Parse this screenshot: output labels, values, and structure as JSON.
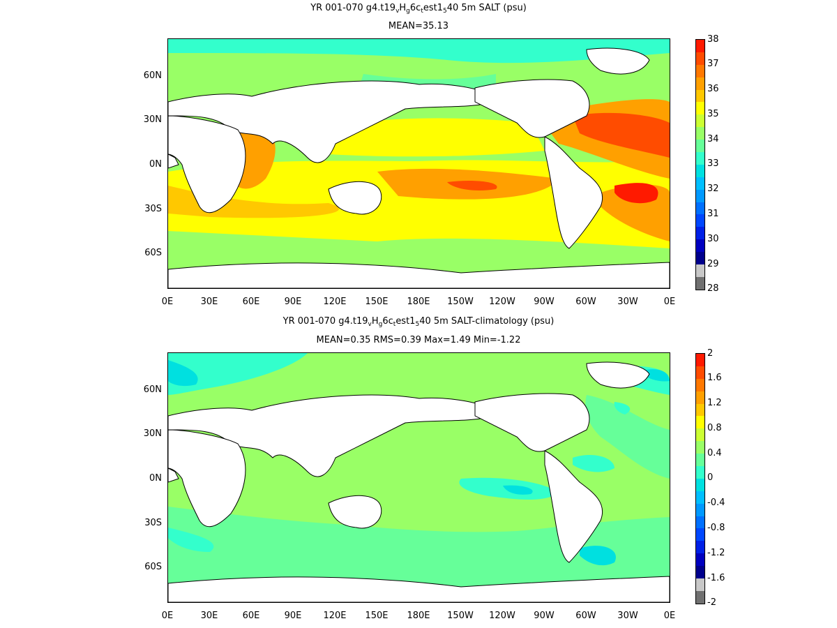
{
  "panels": [
    {
      "title_parts": [
        "YR 001-070 g4.t19",
        "v",
        "H",
        "g",
        "6c",
        "t",
        "est1",
        "5",
        "40 5m SALT (psu)"
      ],
      "subtitle": "MEAN=35.13",
      "colorbar_labels": [
        "38",
        "37",
        "36",
        "35",
        "34",
        "33",
        "32",
        "31",
        "30",
        "29",
        "28"
      ],
      "colorbar_colors": [
        "#ff1a00",
        "#ff4c00",
        "#ff7800",
        "#ffa000",
        "#ffc800",
        "#ffff00",
        "#ccff33",
        "#99ff66",
        "#66ff99",
        "#33ffcc",
        "#00e0e0",
        "#00bfff",
        "#0099ff",
        "#0070ff",
        "#0047ff",
        "#0020e6",
        "#0000c0",
        "#00008c",
        "#c8c8c8",
        "#707070"
      ]
    },
    {
      "title_parts": [
        "YR 001-070 g4.t19",
        "v",
        "H",
        "g",
        "6c",
        "t",
        "est1",
        "5",
        "40 5m SALT-climatology (psu)"
      ],
      "subtitle": "MEAN=0.35   RMS=0.39   Max=1.49   Min=-1.22",
      "colorbar_labels": [
        "2",
        "1.6",
        "1.2",
        "0.8",
        "0.4",
        "0",
        "-0.4",
        "-0.8",
        "-1.2",
        "-1.6",
        "-2"
      ],
      "colorbar_colors": [
        "#ff1a00",
        "#ff4c00",
        "#ff7800",
        "#ffa000",
        "#ffc800",
        "#ffff00",
        "#ccff33",
        "#99ff66",
        "#66ff99",
        "#33ffcc",
        "#00e0e0",
        "#00bfff",
        "#0099ff",
        "#0070ff",
        "#0047ff",
        "#0020e6",
        "#0000c0",
        "#00008c",
        "#c8c8c8",
        "#707070"
      ]
    }
  ],
  "x_axis_labels": [
    "0E",
    "30E",
    "60E",
    "90E",
    "120E",
    "150E",
    "180E",
    "150W",
    "120W",
    "90W",
    "60W",
    "30W",
    "0E"
  ],
  "y_axis_labels": [
    "60N",
    "30N",
    "0N",
    "30S",
    "60S"
  ],
  "colors": {
    "land": "#ffffff",
    "coast": "#000000"
  }
}
